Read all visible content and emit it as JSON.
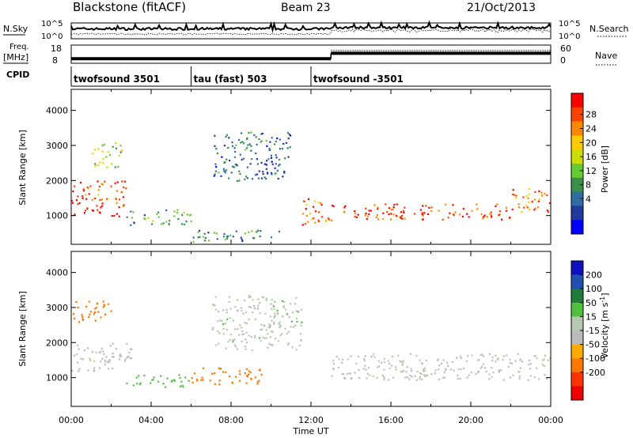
{
  "header": {
    "title": "Blackstone (fitACF)",
    "beam": "Beam 23",
    "date": "21/Oct/2013"
  },
  "status_panel": {
    "nsky_label": "N.Sky",
    "nsearch_label": "N.Search",
    "count_ticks": [
      "10^5",
      "10^0"
    ],
    "freq_label_line1": "Freq.",
    "freq_label_line2": "[MHz]",
    "freq_ticks": [
      "18",
      "8"
    ],
    "nave_label": "Nave",
    "nave_ticks": [
      "60",
      "0"
    ],
    "freq_mhz_segments": [
      {
        "start_hour": 0,
        "end_hour": 13,
        "value": 10.5
      },
      {
        "start_hour": 13,
        "end_hour": 24,
        "value": 13.5
      }
    ],
    "nave_segments": [
      {
        "start_hour": 0,
        "end_hour": 13,
        "value": 18
      },
      {
        "start_hour": 13,
        "end_hour": 24,
        "value": 42
      }
    ]
  },
  "cpid": {
    "label": "CPID",
    "segments": [
      {
        "name": "twofsound 3501",
        "start_hour": 0,
        "end_hour": 6
      },
      {
        "name": "tau (fast) 503",
        "start_hour": 6,
        "end_hour": 12
      },
      {
        "name": "twofsound -3501",
        "start_hour": 12,
        "end_hour": 24
      }
    ]
  },
  "chart_data": [
    {
      "type": "heatmap",
      "variable": "Power",
      "ylabel": "Slant Range [km]",
      "xlabel": "Time UT",
      "x_ticks": [
        "00:00",
        "04:00",
        "08:00",
        "12:00",
        "16:00",
        "20:00",
        "00:00"
      ],
      "xlim_hours": [
        0,
        24
      ],
      "ylim_km": [
        180,
        4600
      ],
      "y_ticks": [
        1000,
        2000,
        3000,
        4000
      ],
      "colorbar": {
        "label": "Power [dB]",
        "ticks": [
          "4",
          "8",
          "12",
          "16",
          "20",
          "24",
          "28"
        ],
        "range": [
          0,
          32
        ],
        "colors": [
          "#0000ff",
          "#1f3a9c",
          "#2f6ca0",
          "#3a8f4a",
          "#66cc33",
          "#ccdd00",
          "#ffcc00",
          "#ff8800",
          "#ff4400",
          "#ff0000"
        ]
      },
      "echo_bands": [
        {
          "t0": 0.0,
          "t1": 2.7,
          "r0": 1000,
          "r1": 2000,
          "value": 28
        },
        {
          "t0": 1.0,
          "t1": 2.5,
          "r0": 2400,
          "r1": 3100,
          "value": 16
        },
        {
          "t0": 2.7,
          "t1": 6.0,
          "r0": 750,
          "r1": 1200,
          "value": 12
        },
        {
          "t0": 6.0,
          "t1": 10.5,
          "r0": 250,
          "r1": 600,
          "value": 10
        },
        {
          "t0": 7.0,
          "t1": 11.0,
          "r0": 2000,
          "r1": 3400,
          "value": 8
        },
        {
          "t0": 11.5,
          "t1": 13.0,
          "r0": 700,
          "r1": 1500,
          "value": 26
        },
        {
          "t0": 13.0,
          "t1": 22.0,
          "r0": 900,
          "r1": 1350,
          "value": 28
        },
        {
          "t0": 22.0,
          "t1": 24.0,
          "r0": 1100,
          "r1": 1800,
          "value": 26
        }
      ]
    },
    {
      "type": "heatmap",
      "variable": "Velocity",
      "ylabel": "Slant Range [km]",
      "xlabel": "Time UT",
      "x_ticks": [
        "00:00",
        "04:00",
        "08:00",
        "12:00",
        "16:00",
        "20:00",
        "00:00"
      ],
      "xlim_hours": [
        0,
        24
      ],
      "ylim_km": [
        180,
        4600
      ],
      "y_ticks": [
        1000,
        2000,
        3000,
        4000
      ],
      "colorbar": {
        "label": "Velocity [m s^-1]",
        "ticks": [
          "200",
          "100",
          "50",
          "15",
          "-15",
          "-50",
          "-100",
          "-200"
        ],
        "colors": [
          "#1010c0",
          "#2050b0",
          "#207a3a",
          "#50c040",
          "#b8c8b0",
          "#bbbbbb",
          "#ffaa00",
          "#ff7700",
          "#ff3300",
          "#ee0000"
        ]
      },
      "echo_bands": [
        {
          "t0": 0.0,
          "t1": 3.0,
          "r0": 1200,
          "r1": 2000,
          "value": 0
        },
        {
          "t0": 0.0,
          "t1": 2.0,
          "r0": 2600,
          "r1": 3200,
          "value": -80
        },
        {
          "t0": 2.7,
          "t1": 6.0,
          "r0": 750,
          "r1": 1100,
          "value": 40
        },
        {
          "t0": 6.0,
          "t1": 9.5,
          "r0": 800,
          "r1": 1300,
          "value": -70
        },
        {
          "t0": 7.0,
          "t1": 11.5,
          "r0": 1800,
          "r1": 3400,
          "value": 10
        },
        {
          "t0": 13.0,
          "t1": 24.0,
          "r0": 950,
          "r1": 1700,
          "value": 0
        }
      ]
    }
  ]
}
